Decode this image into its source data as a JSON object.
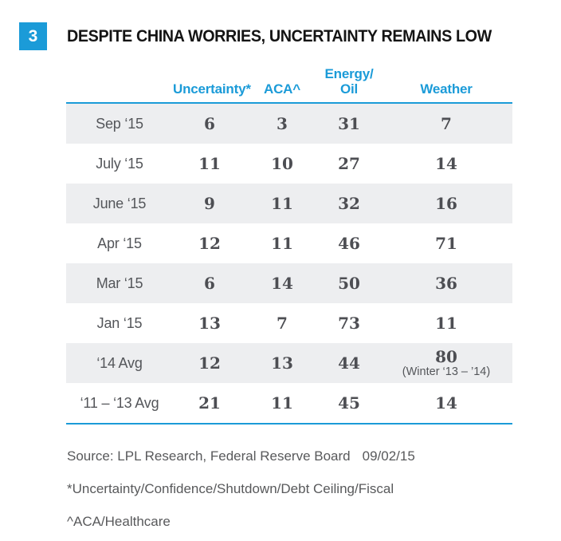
{
  "figure_badge": "3",
  "title": "DESPITE CHINA WORRIES, UNCERTAINTY REMAINS LOW",
  "chart_data": {
    "type": "table",
    "title": "DESPITE CHINA WORRIES, UNCERTAINTY REMAINS LOW",
    "figure_number": "3",
    "columns": {
      "period": "",
      "uncertainty": "Uncertainty*",
      "aca": "ACA^",
      "energy_line1": "Energy/",
      "energy_line2": "Oil",
      "weather": "Weather"
    },
    "rows": [
      {
        "period": "Sep ‘15",
        "uncertainty": 6,
        "aca": 3,
        "energy_oil": 31,
        "weather": 7
      },
      {
        "period": "July ‘15",
        "uncertainty": 11,
        "aca": 10,
        "energy_oil": 27,
        "weather": 14
      },
      {
        "period": "June ‘15",
        "uncertainty": 9,
        "aca": 11,
        "energy_oil": 32,
        "weather": 16
      },
      {
        "period": "Apr ‘15",
        "uncertainty": 12,
        "aca": 11,
        "energy_oil": 46,
        "weather": 71
      },
      {
        "period": "Mar ‘15",
        "uncertainty": 6,
        "aca": 14,
        "energy_oil": 50,
        "weather": 36
      },
      {
        "period": "Jan ‘15",
        "uncertainty": 13,
        "aca": 7,
        "energy_oil": 73,
        "weather": 11
      },
      {
        "period": "‘14 Avg",
        "uncertainty": 12,
        "aca": 13,
        "energy_oil": 44,
        "weather": 80,
        "weather_note": "(Winter ‘13 – ’14)"
      },
      {
        "period": "‘11 – ‘13 Avg",
        "uncertainty": 21,
        "aca": 11,
        "energy_oil": 45,
        "weather": 14
      }
    ]
  },
  "footer": {
    "source_label": "Source: LPL Research, Federal Reserve Board",
    "source_date": "09/02/15",
    "footnote_uncertainty": "*Uncertainty/Confidence/Shutdown/Debt Ceiling/Fiscal",
    "footnote_aca": "^ACA/Healthcare"
  },
  "colors": {
    "accent_blue": "#1b9bd8",
    "row_shade": "#edeef0",
    "number_text": "#4d4e53",
    "label_text": "#54565a",
    "title_text": "#141414"
  }
}
